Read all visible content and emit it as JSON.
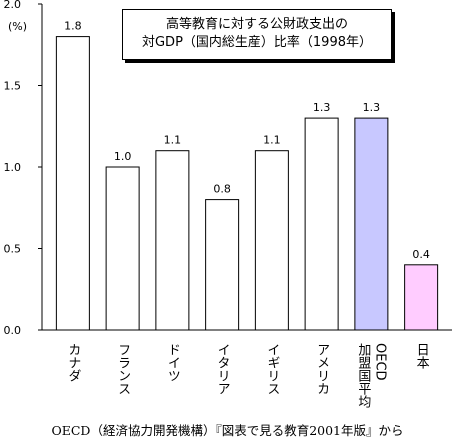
{
  "chart_data": {
    "type": "bar",
    "title_lines": [
      "高等教育に対する公財政支出の",
      "対GDP（国内総生産）比率（1998年）"
    ],
    "unit": "(%)",
    "ylim": [
      0,
      2.0
    ],
    "yticks": [
      "0.0",
      "0.5",
      "1.0",
      "1.5",
      "2.0"
    ],
    "categories": [
      "カナダ",
      "フランス",
      "ドイツ",
      "イタリア",
      "イギリス",
      "アメリカ",
      "OECD加盟国平均",
      "日本"
    ],
    "category_columns": [
      [
        "カナダ"
      ],
      [
        "フランス"
      ],
      [
        "ドイツ"
      ],
      [
        "イタリア"
      ],
      [
        "イギリス"
      ],
      [
        "アメリカ"
      ],
      [
        "加盟国平均",
        "OECD"
      ],
      [
        "日本"
      ]
    ],
    "values": [
      1.8,
      1.0,
      1.1,
      0.8,
      1.1,
      1.3,
      1.3,
      0.4
    ],
    "value_labels": [
      "1.8",
      "1.0",
      "1.1",
      "0.8",
      "1.1",
      "1.3",
      "1.3",
      "0.4"
    ],
    "bar_colors": [
      "#ffffff",
      "#ffffff",
      "#ffffff",
      "#ffffff",
      "#ffffff",
      "#ffffff",
      "#c8c8ff",
      "#ffccff"
    ],
    "grid": false
  },
  "source": "OECD（経済協力開発機構）『図表で見る教育2001年版』から"
}
